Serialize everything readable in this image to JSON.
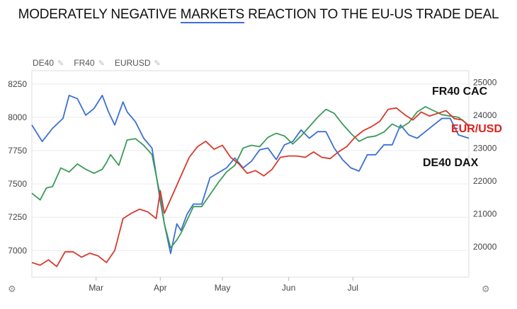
{
  "header": {
    "title_before": "MODERATELY NEGATIVE ",
    "title_link": "MARKETS",
    "title_after": " REACTION TO THE EU-US TRADE DEAL"
  },
  "legend": {
    "items": [
      {
        "label": "DE40",
        "icon": "pencil-icon"
      },
      {
        "label": "FR40",
        "icon": "pencil-icon"
      },
      {
        "label": "EURUSD",
        "icon": "pencil-icon"
      }
    ]
  },
  "icons": {
    "settings_left": "gear-icon",
    "settings_right": "gear-icon"
  },
  "chart_data": {
    "type": "line",
    "title": "MODERATELY NEGATIVE MARKETS REACTION TO THE EU-US TRADE DEAL",
    "x_labels": [
      "Mar",
      "Apr",
      "May",
      "Jun",
      "Jul"
    ],
    "x_label_days": [
      31,
      62,
      92,
      124,
      155
    ],
    "x_range": [
      0,
      211
    ],
    "left_axis": {
      "ticks": [
        7000,
        7250,
        7500,
        7750,
        8000,
        8250
      ],
      "range": [
        6800,
        8350
      ]
    },
    "right_axis": {
      "ticks": [
        20000,
        21000,
        22000,
        23000,
        24000,
        25000
      ],
      "range": [
        19080,
        25350
      ]
    },
    "grid": true,
    "annotations": [
      {
        "text": "FR40 CAC",
        "color": "#111111"
      },
      {
        "text": "EUR/USD",
        "color": "#e0201b"
      },
      {
        "text": "DE40  DAX",
        "color": "#111111"
      }
    ],
    "series": [
      {
        "name": "DE40",
        "axis": "right",
        "color": "#3b6fd4",
        "x": [
          0,
          5,
          10,
          15,
          18,
          22,
          26,
          30,
          34,
          37,
          40,
          44,
          46,
          50,
          54,
          58,
          62,
          64,
          67,
          70,
          72,
          75,
          78,
          82,
          86,
          90,
          94,
          98,
          102,
          106,
          110,
          114,
          118,
          122,
          126,
          130,
          134,
          138,
          142,
          146,
          150,
          154,
          158,
          162,
          166,
          170,
          174,
          178,
          182,
          186,
          190,
          194,
          198,
          202,
          206,
          211
        ],
        "y": [
          23700,
          23200,
          23600,
          23900,
          24600,
          24500,
          24000,
          24200,
          24600,
          24100,
          23700,
          24400,
          24100,
          23800,
          23300,
          23000,
          21400,
          20700,
          19800,
          20700,
          20500,
          21000,
          21300,
          21300,
          22100,
          22250,
          22400,
          22700,
          22400,
          22600,
          22950,
          23000,
          22650,
          23100,
          23200,
          23550,
          23300,
          23500,
          23500,
          23000,
          22650,
          22400,
          22300,
          22800,
          22800,
          23100,
          23100,
          23700,
          23400,
          23300,
          23500,
          23700,
          23900,
          23900,
          23400,
          23300
        ]
      },
      {
        "name": "FR40",
        "axis": "left",
        "color": "#3b9a5a",
        "x": [
          0,
          4,
          7,
          10,
          14,
          18,
          22,
          26,
          30,
          34,
          36,
          38,
          42,
          46,
          50,
          54,
          58,
          62,
          64,
          67,
          70,
          72,
          75,
          78,
          82,
          86,
          90,
          94,
          98,
          102,
          106,
          110,
          114,
          118,
          122,
          126,
          130,
          134,
          138,
          142,
          146,
          150,
          154,
          158,
          162,
          166,
          170,
          174,
          178,
          182,
          186,
          190,
          194,
          198,
          202,
          206,
          211
        ],
        "y": [
          7430,
          7380,
          7470,
          7480,
          7620,
          7590,
          7650,
          7610,
          7580,
          7610,
          7660,
          7720,
          7640,
          7830,
          7840,
          7790,
          7720,
          7410,
          7200,
          7020,
          7080,
          7130,
          7230,
          7330,
          7330,
          7420,
          7510,
          7590,
          7640,
          7770,
          7790,
          7780,
          7850,
          7880,
          7860,
          7800,
          7860,
          7930,
          8000,
          8060,
          8030,
          7950,
          7880,
          7820,
          7850,
          7860,
          7890,
          7950,
          7920,
          7960,
          8040,
          8080,
          8050,
          8020,
          8010,
          8000,
          7940
        ]
      },
      {
        "name": "EURUSD",
        "axis": "left",
        "color": "#d63a2b",
        "x": [
          0,
          4,
          8,
          12,
          16,
          20,
          24,
          28,
          32,
          36,
          40,
          44,
          48,
          52,
          56,
          60,
          62,
          64,
          68,
          72,
          76,
          80,
          84,
          88,
          92,
          96,
          100,
          104,
          108,
          112,
          116,
          120,
          124,
          128,
          132,
          136,
          140,
          144,
          148,
          152,
          156,
          160,
          164,
          168,
          172,
          176,
          180,
          184,
          188,
          192,
          196,
          200,
          204,
          208,
          211
        ],
        "y": [
          6910,
          6890,
          6930,
          6880,
          6990,
          6990,
          6950,
          6980,
          6960,
          6910,
          7000,
          7240,
          7280,
          7310,
          7290,
          7240,
          7450,
          7280,
          7420,
          7560,
          7700,
          7780,
          7820,
          7760,
          7790,
          7700,
          7650,
          7580,
          7600,
          7560,
          7610,
          7700,
          7710,
          7710,
          7700,
          7740,
          7700,
          7690,
          7740,
          7780,
          7850,
          7900,
          7930,
          7970,
          8060,
          8070,
          8020,
          7980,
          8040,
          8010,
          8030,
          8050,
          7990,
          7980,
          7930
        ]
      }
    ]
  }
}
